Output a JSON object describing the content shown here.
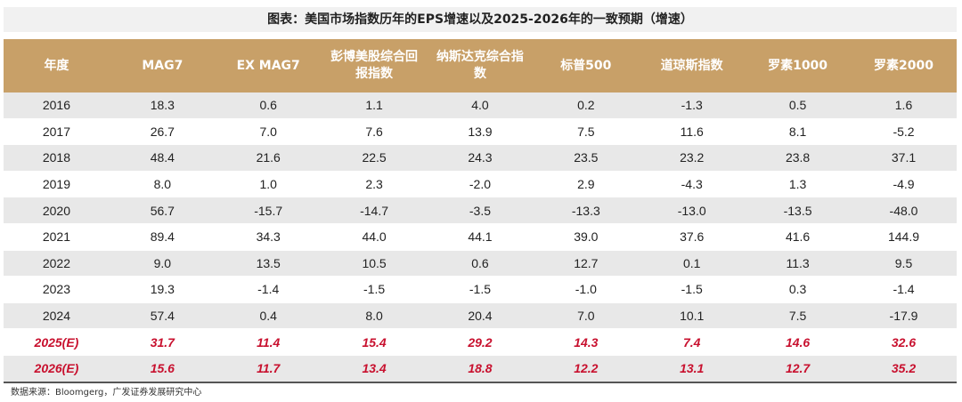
{
  "title": "图表：美国市场指数历年的EPS增速以及2025-2026年的一致预期（增速）",
  "headers": [
    "年度",
    "MAG7",
    "EX MAG7",
    "彭博美股综合回报指数",
    "纳斯达克综合指数",
    "标普500",
    "道琼斯指数",
    "罗素1000",
    "罗素2000"
  ],
  "rows": [
    {
      "year": "2016",
      "values": [
        "18.3",
        "0.6",
        "1.1",
        "4.0",
        "0.2",
        "-1.3",
        "0.5",
        "1.6"
      ]
    },
    {
      "year": "2017",
      "values": [
        "26.7",
        "7.0",
        "7.6",
        "13.9",
        "7.5",
        "11.6",
        "8.1",
        "-5.2"
      ]
    },
    {
      "year": "2018",
      "values": [
        "48.4",
        "21.6",
        "22.5",
        "24.3",
        "23.5",
        "23.2",
        "23.8",
        "37.1"
      ]
    },
    {
      "year": "2019",
      "values": [
        "8.0",
        "1.0",
        "2.3",
        "-2.0",
        "2.9",
        "-4.3",
        "1.3",
        "-4.9"
      ]
    },
    {
      "year": "2020",
      "values": [
        "56.7",
        "-15.7",
        "-14.7",
        "-3.5",
        "-13.3",
        "-13.0",
        "-13.5",
        "-48.0"
      ]
    },
    {
      "year": "2021",
      "values": [
        "89.4",
        "34.3",
        "44.0",
        "44.1",
        "39.0",
        "37.6",
        "41.6",
        "144.9"
      ]
    },
    {
      "year": "2022",
      "values": [
        "9.0",
        "13.5",
        "10.5",
        "0.6",
        "12.7",
        "0.1",
        "11.3",
        "9.5"
      ]
    },
    {
      "year": "2023",
      "values": [
        "19.3",
        "-1.4",
        "-1.5",
        "-1.5",
        "-1.0",
        "-1.5",
        "0.3",
        "-1.4"
      ]
    },
    {
      "year": "2024",
      "values": [
        "57.4",
        "0.4",
        "8.0",
        "20.4",
        "7.0",
        "10.1",
        "7.5",
        "-17.9"
      ]
    },
    {
      "year": "2025(E)",
      "values": [
        "31.7",
        "11.4",
        "15.4",
        "29.2",
        "14.3",
        "7.4",
        "14.6",
        "32.6"
      ]
    },
    {
      "year": "2026(E)",
      "values": [
        "15.6",
        "11.7",
        "13.4",
        "18.8",
        "12.2",
        "13.1",
        "12.7",
        "35.2"
      ]
    }
  ],
  "source": "数据来源：Bloomgerg，广发证券发展研究中心",
  "colors": {
    "header_bg": "#c8a068",
    "estimate_text": "#c8102e",
    "stripe": "#e8e8e8"
  }
}
